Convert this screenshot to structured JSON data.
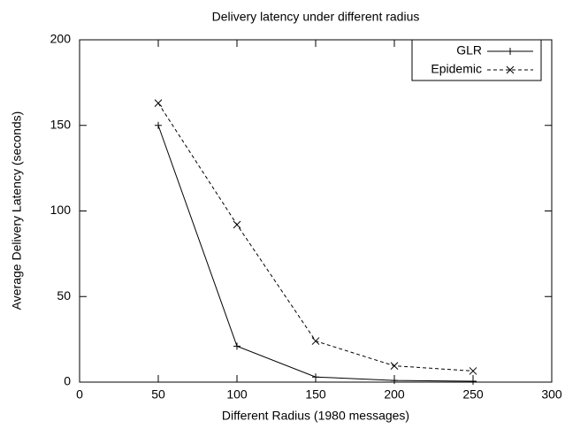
{
  "chart_data": {
    "type": "line",
    "title": "Delivery latency under different radius",
    "xlabel": "Different Radius (1980 messages)",
    "ylabel": "Average Delivery Latency (seconds)",
    "x": [
      50,
      100,
      150,
      200,
      250
    ],
    "series": [
      {
        "name": "GLR",
        "color": "#000000",
        "dash": "solid",
        "marker": "plus",
        "values": [
          150,
          21,
          3,
          1,
          0.5
        ]
      },
      {
        "name": "Epidemic",
        "color": "#000000",
        "dash": "dashed",
        "marker": "cross",
        "values": [
          163,
          92,
          24,
          9.5,
          6.5
        ]
      }
    ],
    "xlim": [
      0,
      300
    ],
    "xticks": [
      0,
      50,
      100,
      150,
      200,
      250,
      300
    ],
    "ylim": [
      0,
      200
    ],
    "yticks": [
      0,
      50,
      100,
      150,
      200
    ],
    "grid": false,
    "legend": "upper right"
  }
}
